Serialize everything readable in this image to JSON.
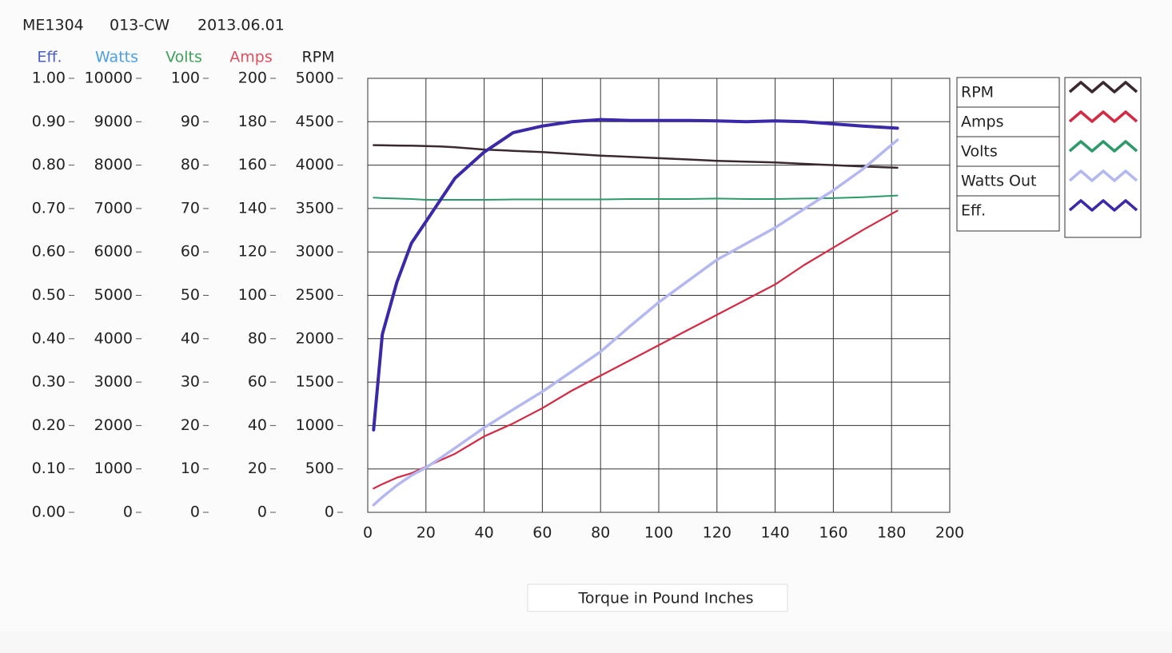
{
  "chart_data": {
    "type": "line",
    "header": [
      "ME1304",
      "013-CW",
      "2013.06.01"
    ],
    "x_label": "Torque in Pound Inches",
    "grid": true,
    "legend": "right",
    "xlim": [
      0,
      200
    ],
    "xticks": [
      0,
      20,
      40,
      60,
      80,
      100,
      120,
      140,
      160,
      180,
      200
    ],
    "y_axes": [
      {
        "title": "Eff.",
        "color": "#4a5ec8",
        "ylim": [
          0,
          1
        ],
        "yticks": [
          {
            "value": 0,
            "label": "0.00"
          },
          {
            "value": 0.1,
            "label": "0.10"
          },
          {
            "value": 0.2,
            "label": "0.20"
          },
          {
            "value": 0.3,
            "label": "0.30"
          },
          {
            "value": 0.4,
            "label": "0.40"
          },
          {
            "value": 0.5,
            "label": "0.50"
          },
          {
            "value": 0.6,
            "label": "0.60"
          },
          {
            "value": 0.7,
            "label": "0.70"
          },
          {
            "value": 0.8,
            "label": "0.80"
          },
          {
            "value": 0.9,
            "label": "0.90"
          },
          {
            "value": 1,
            "label": "1.00"
          }
        ]
      },
      {
        "title": "Watts",
        "color": "#4aa0e0",
        "ylim": [
          0,
          10000
        ],
        "yticks": [
          0,
          1000,
          2000,
          3000,
          4000,
          5000,
          6000,
          7000,
          8000,
          9000,
          10000
        ]
      },
      {
        "title": "Volts",
        "color": "#3fa05a",
        "ylim": [
          0,
          100
        ],
        "yticks": [
          0,
          10,
          20,
          30,
          40,
          50,
          60,
          70,
          80,
          90,
          100
        ]
      },
      {
        "title": "Amps",
        "color": "#e0505e",
        "ylim": [
          0,
          200
        ],
        "yticks": [
          0,
          20,
          40,
          60,
          80,
          100,
          120,
          140,
          160,
          180,
          200
        ]
      },
      {
        "title": "RPM",
        "color": "#222222",
        "ylim": [
          0,
          5000
        ],
        "yticks": [
          0,
          500,
          1000,
          1500,
          2000,
          2500,
          3000,
          3500,
          4000,
          4500,
          5000
        ]
      }
    ],
    "x": [
      2,
      5,
      10,
      15,
      20,
      25,
      30,
      40,
      50,
      60,
      70,
      80,
      90,
      100,
      110,
      120,
      130,
      140,
      150,
      160,
      170,
      182
    ],
    "series": [
      {
        "name": "RPM",
        "color": "#3a2a2e",
        "axis": 4,
        "values": [
          4230,
          4228,
          4226,
          4224,
          4220,
          4215,
          4205,
          4180,
          4165,
          4150,
          4130,
          4110,
          4095,
          4080,
          4065,
          4050,
          4040,
          4030,
          4015,
          4000,
          3985,
          3970
        ]
      },
      {
        "name": "Amps",
        "color": "#d42a44",
        "axis": 3,
        "values": [
          11,
          13,
          16,
          18,
          21,
          24,
          27,
          35,
          41,
          48,
          56,
          63,
          70,
          77,
          84,
          91,
          98,
          105,
          114,
          122,
          130,
          139
        ]
      },
      {
        "name": "Volts",
        "color": "#2e9a6a",
        "axis": 2,
        "values": [
          72.5,
          72.4,
          72.3,
          72.2,
          72,
          72,
          72,
          72,
          72.1,
          72.1,
          72.1,
          72.1,
          72.2,
          72.2,
          72.2,
          72.3,
          72.2,
          72.2,
          72.3,
          72.4,
          72.6,
          73
        ]
      },
      {
        "name": "Watts Out",
        "color": "#b4b8f0",
        "axis": 1,
        "values": [
          170,
          350,
          620,
          850,
          1030,
          1250,
          1480,
          1950,
          2370,
          2780,
          3240,
          3700,
          4280,
          4840,
          5330,
          5820,
          6190,
          6560,
          6990,
          7420,
          7900,
          8580
        ]
      },
      {
        "name": "Eff.",
        "color": "#3b2aa8",
        "axis": 0,
        "values": [
          0.19,
          0.41,
          0.53,
          0.62,
          0.67,
          0.72,
          0.77,
          0.83,
          0.875,
          0.89,
          0.9,
          0.905,
          0.903,
          0.903,
          0.903,
          0.902,
          0.9,
          0.902,
          0.9,
          0.895,
          0.89,
          0.885
        ]
      }
    ]
  }
}
